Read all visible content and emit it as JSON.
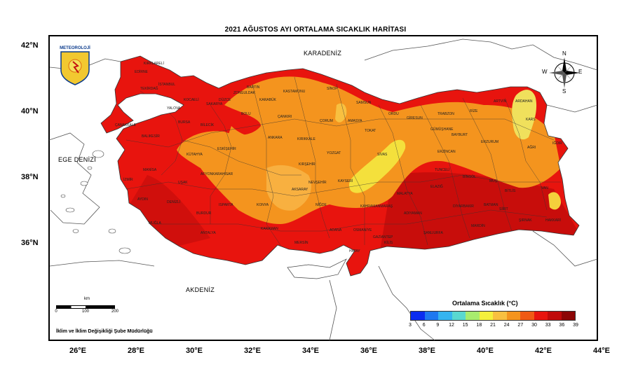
{
  "title": "2021 AĞUSTOS AYI ORTALAMA SICAKLIK HARİTASI",
  "lat_labels": [
    "42°N",
    "40°N",
    "38°N",
    "36°N"
  ],
  "lon_labels": [
    "26°E",
    "28°E",
    "30°E",
    "32°E",
    "34°E",
    "36°E",
    "38°E",
    "40°E",
    "42°E",
    "44°E"
  ],
  "seas": {
    "black_sea": "KARADENİZ",
    "aegean": "EGE DENİZİ",
    "mediterranean": "AKDENİZ"
  },
  "logo_text": "METEOROLOJİ",
  "compass": {
    "n": "N",
    "s": "S",
    "e": "E",
    "w": "W"
  },
  "scale": {
    "unit": "km",
    "ticks": [
      "0",
      "100",
      "200"
    ]
  },
  "credit": "İklim ve İklim Değişikliği Şube Müdürlüğü",
  "legend": {
    "title": "Ortalama Sıcaklık (°C)",
    "ticks": [
      "3",
      "6",
      "9",
      "12",
      "15",
      "18",
      "21",
      "24",
      "27",
      "30",
      "33",
      "36",
      "39"
    ],
    "colors": [
      "#0a2cf0",
      "#1e78f0",
      "#35b4f0",
      "#5ad8d0",
      "#a8ec6e",
      "#f4f03c",
      "#f8c040",
      "#f4941e",
      "#f05a14",
      "#e8140e",
      "#c00a0a",
      "#8c0606"
    ]
  },
  "cities": [
    "EDİRNE",
    "KIRKLARELİ",
    "TEKİRDAĞ",
    "İSTANBUL",
    "KOCAELİ",
    "SAKARYA",
    "DÜZCE",
    "ZONGULDAK",
    "BARTIN",
    "KASTAMONU",
    "SİNOP",
    "SAMSUN",
    "ORDU",
    "GİRESUN",
    "TRABZON",
    "RİZE",
    "ARTVİN",
    "ARDAHAN",
    "KARS",
    "IĞDIR",
    "AĞRI",
    "ERZURUM",
    "BAYBURT",
    "GÜMÜŞHANE",
    "ERZİNCAN",
    "TUNCELİ",
    "BİNGÖL",
    "MUŞ",
    "BİTLİS",
    "VAN",
    "HAKKARİ",
    "ŞIRNAK",
    "SİİRT",
    "BATMAN",
    "MARDİN",
    "ŞANLIURFA",
    "ADIYAMAN",
    "MALATYA",
    "ELAZIĞ",
    "DİYARBAKIR",
    "KAHRAMANMARAŞ",
    "GAZİANTEP",
    "KİLİS",
    "HATAY",
    "OSMANİYE",
    "ADANA",
    "MERSİN",
    "KARAMAN",
    "KONYA",
    "ANTALYA",
    "BURDUR",
    "ISPARTA",
    "DENİZLİ",
    "MUĞLA",
    "AYDIN",
    "İZMİR",
    "MANİSA",
    "UŞAK",
    "KÜTAHYA",
    "AFYONKARAHİSAR",
    "BALIKESİR",
    "ÇANAKKALE",
    "BURSA",
    "BİLECİK",
    "ESKİŞEHİR",
    "ANKARA",
    "BOLU",
    "ÇANKIRI",
    "ÇORUM",
    "AMASYA",
    "TOKAT",
    "SİVAS",
    "YOZGAT",
    "KIRIKKALE",
    "KIRŞEHİR",
    "NEVŞEHİR",
    "AKSARAY",
    "NİĞDE",
    "KAYSERİ",
    "KARABÜK",
    "YALOVA"
  ]
}
